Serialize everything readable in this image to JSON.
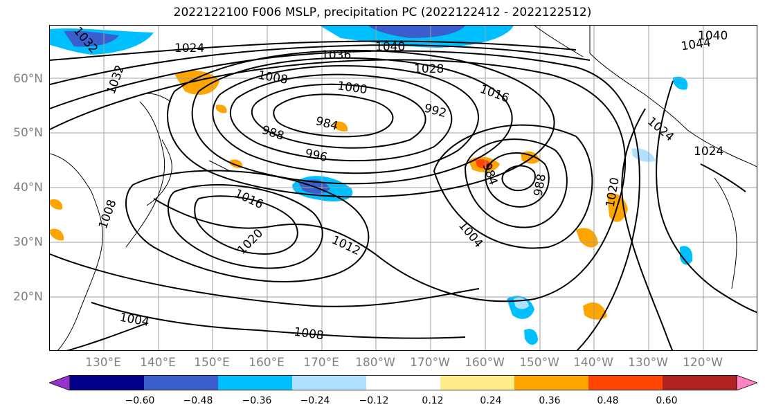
{
  "title": "2022122100 F006 MSLP, precipitation PC (2022122412 - 2022122512)",
  "lat_labels": [
    "60°N",
    "50°N",
    "40°N",
    "30°N",
    "20°N"
  ],
  "lon_labels": [
    "130°E",
    "140°E",
    "150°E",
    "160°E",
    "170°E",
    "180°W",
    "170°W",
    "160°W",
    "150°W",
    "140°W",
    "130°W",
    "120°W"
  ],
  "colorbar": {
    "ticks": [
      "−0.60",
      "−0.48",
      "−0.36",
      "−0.24",
      "−0.12",
      "0.12",
      "0.24",
      "0.36",
      "0.48",
      "0.60"
    ],
    "colors": [
      "#9932cc",
      "#00008b",
      "#3a5fcd",
      "#00bfff",
      "#b0e2ff",
      "#ffffff",
      "#ffec8b",
      "#ffa500",
      "#ff4500",
      "#b22222",
      "#ff83c0"
    ]
  },
  "contour_labels": [
    "1040",
    "1036",
    "1028",
    "1024",
    "1032",
    "1016",
    "1008",
    "1000",
    "992",
    "988",
    "984",
    "996",
    "1016",
    "1020",
    "1012",
    "1004",
    "1008",
    "1004",
    "984",
    "988",
    "1020",
    "1024",
    "1044",
    "1040",
    "1024",
    "1032",
    "1008"
  ]
}
